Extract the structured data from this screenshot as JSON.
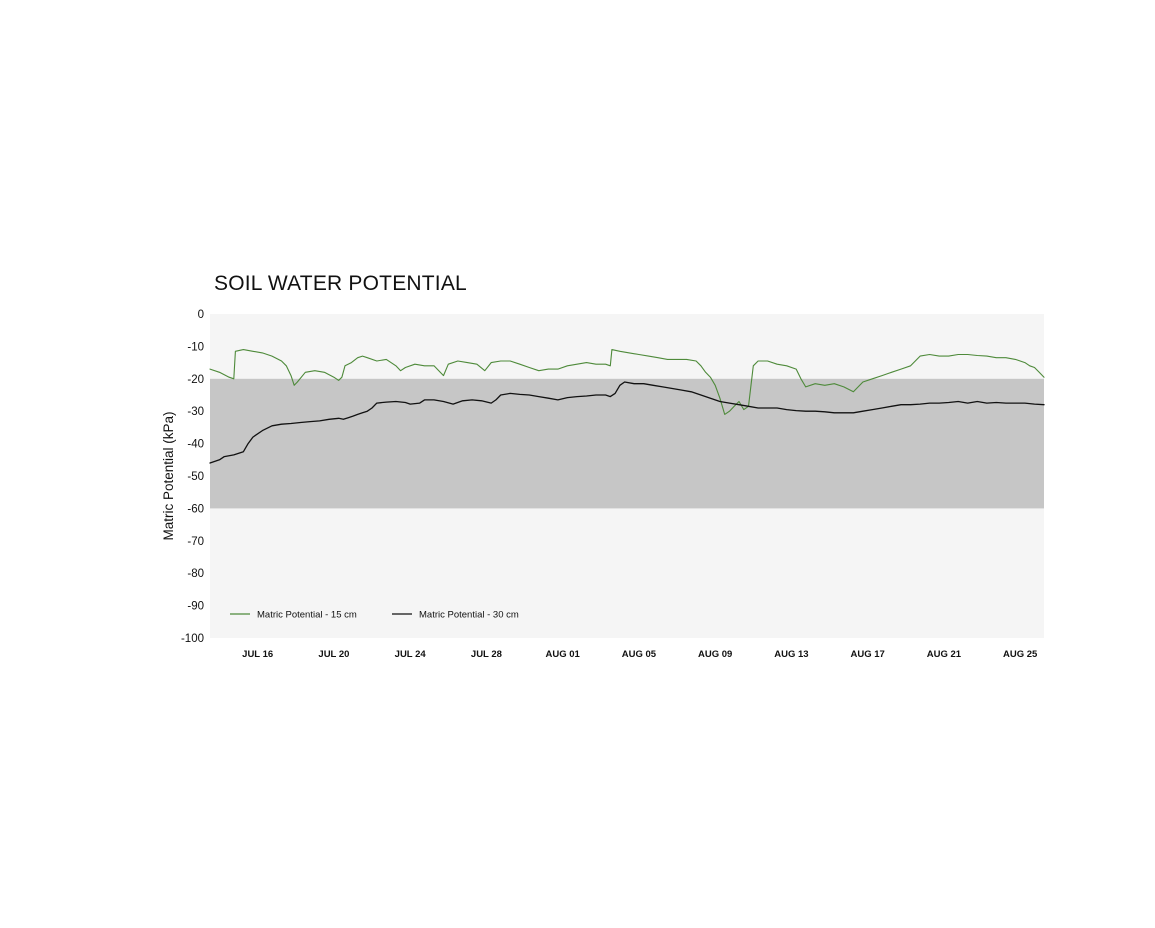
{
  "chart_data": {
    "type": "line",
    "title": "SOIL WATER POTENTIAL",
    "ylabel": "Matric Potential (kPa)",
    "xlabel": "",
    "ylim": [
      -100,
      0
    ],
    "xlim": [
      "2023-07-13",
      "2023-08-26"
    ],
    "yticks": [
      0,
      -10,
      -20,
      -30,
      -40,
      -50,
      -60,
      -70,
      -80,
      -90,
      -100
    ],
    "xticks": [
      {
        "label": "JUL 16",
        "date": "07-16"
      },
      {
        "label": "JUL 20",
        "date": "07-20"
      },
      {
        "label": "JUL 24",
        "date": "07-24"
      },
      {
        "label": "JUL 28",
        "date": "07-28"
      },
      {
        "label": "AUG 01",
        "date": "08-01"
      },
      {
        "label": "AUG 05",
        "date": "08-05"
      },
      {
        "label": "AUG 09",
        "date": "08-09"
      },
      {
        "label": "AUG 13",
        "date": "08-13"
      },
      {
        "label": "AUG 17",
        "date": "08-17"
      },
      {
        "label": "AUG 21",
        "date": "08-21"
      },
      {
        "label": "AUG 25",
        "date": "08-25"
      }
    ],
    "bands": [
      {
        "from": -20,
        "to": -60,
        "color": "#c6c6c6"
      }
    ],
    "plot_background": "#f5f5f5",
    "grid": false,
    "legend_position": "bottom-left",
    "series": [
      {
        "name": "Matric Potential - 15 cm",
        "color": "#4e8a3a",
        "points": [
          [
            "07-13 12:00",
            -17.0
          ],
          [
            "07-14 00:00",
            -18.0
          ],
          [
            "07-14 12:00",
            -19.5
          ],
          [
            "07-14 18:00",
            -20.0
          ],
          [
            "07-14 20:00",
            -11.5
          ],
          [
            "07-15 06:00",
            -11.0
          ],
          [
            "07-15 18:00",
            -11.5
          ],
          [
            "07-16 06:00",
            -12.0
          ],
          [
            "07-16 18:00",
            -13.0
          ],
          [
            "07-17 06:00",
            -14.5
          ],
          [
            "07-17 12:00",
            -16.0
          ],
          [
            "07-17 18:00",
            -19.0
          ],
          [
            "07-17 22:00",
            -22.0
          ],
          [
            "07-18 02:00",
            -21.0
          ],
          [
            "07-18 12:00",
            -18.0
          ],
          [
            "07-19 00:00",
            -17.5
          ],
          [
            "07-19 12:00",
            -18.0
          ],
          [
            "07-20 00:00",
            -19.5
          ],
          [
            "07-20 06:00",
            -20.5
          ],
          [
            "07-20 10:00",
            -19.5
          ],
          [
            "07-20 14:00",
            -16.0
          ],
          [
            "07-20 22:00",
            -15.0
          ],
          [
            "07-21 06:00",
            -13.5
          ],
          [
            "07-21 12:00",
            -13.0
          ],
          [
            "07-21 18:00",
            -13.5
          ],
          [
            "07-22 06:00",
            -14.5
          ],
          [
            "07-22 18:00",
            -14.0
          ],
          [
            "07-23 06:00",
            -16.0
          ],
          [
            "07-23 12:00",
            -17.5
          ],
          [
            "07-23 18:00",
            -16.5
          ],
          [
            "07-24 06:00",
            -15.5
          ],
          [
            "07-24 18:00",
            -16.0
          ],
          [
            "07-25 06:00",
            -16.0
          ],
          [
            "07-25 12:00",
            -17.5
          ],
          [
            "07-25 18:00",
            -19.0
          ],
          [
            "07-26 00:00",
            -15.5
          ],
          [
            "07-26 12:00",
            -14.5
          ],
          [
            "07-27 00:00",
            -15.0
          ],
          [
            "07-27 12:00",
            -15.5
          ],
          [
            "07-27 22:00",
            -17.5
          ],
          [
            "07-28 06:00",
            -15.0
          ],
          [
            "07-28 18:00",
            -14.5
          ],
          [
            "07-29 06:00",
            -14.5
          ],
          [
            "07-29 18:00",
            -15.5
          ],
          [
            "07-30 06:00",
            -16.5
          ],
          [
            "07-30 18:00",
            -17.5
          ],
          [
            "07-31 06:00",
            -17.0
          ],
          [
            "07-31 18:00",
            -17.0
          ],
          [
            "08-01 06:00",
            -16.0
          ],
          [
            "08-01 18:00",
            -15.5
          ],
          [
            "08-02 06:00",
            -15.0
          ],
          [
            "08-02 18:00",
            -15.5
          ],
          [
            "08-03 06:00",
            -15.5
          ],
          [
            "08-03 12:00",
            -16.0
          ],
          [
            "08-03 14:00",
            -11.0
          ],
          [
            "08-04 00:00",
            -11.5
          ],
          [
            "08-04 12:00",
            -12.0
          ],
          [
            "08-05 00:00",
            -12.5
          ],
          [
            "08-05 12:00",
            -13.0
          ],
          [
            "08-06 00:00",
            -13.5
          ],
          [
            "08-06 12:00",
            -14.0
          ],
          [
            "08-07 00:00",
            -14.0
          ],
          [
            "08-07 12:00",
            -14.0
          ],
          [
            "08-08 00:00",
            -14.5
          ],
          [
            "08-08 06:00",
            -16.0
          ],
          [
            "08-08 12:00",
            -18.0
          ],
          [
            "08-08 18:00",
            -19.5
          ],
          [
            "08-09 00:00",
            -22.0
          ],
          [
            "08-09 06:00",
            -26.0
          ],
          [
            "08-09 12:00",
            -31.0
          ],
          [
            "08-09 18:00",
            -30.0
          ],
          [
            "08-10 00:00",
            -28.5
          ],
          [
            "08-10 06:00",
            -27.0
          ],
          [
            "08-10 12:00",
            -29.5
          ],
          [
            "08-10 18:00",
            -28.5
          ],
          [
            "08-11 00:00",
            -16.0
          ],
          [
            "08-11 06:00",
            -14.5
          ],
          [
            "08-11 18:00",
            -14.5
          ],
          [
            "08-12 06:00",
            -15.5
          ],
          [
            "08-12 18:00",
            -16.0
          ],
          [
            "08-13 06:00",
            -17.0
          ],
          [
            "08-13 12:00",
            -20.0
          ],
          [
            "08-13 18:00",
            -22.5
          ],
          [
            "08-14 06:00",
            -21.5
          ],
          [
            "08-14 18:00",
            -22.0
          ],
          [
            "08-15 06:00",
            -21.5
          ],
          [
            "08-15 18:00",
            -22.5
          ],
          [
            "08-16 06:00",
            -24.0
          ],
          [
            "08-16 18:00",
            -21.0
          ],
          [
            "08-17 06:00",
            -20.0
          ],
          [
            "08-17 18:00",
            -19.0
          ],
          [
            "08-18 06:00",
            -18.0
          ],
          [
            "08-18 18:00",
            -17.0
          ],
          [
            "08-19 06:00",
            -16.0
          ],
          [
            "08-19 18:00",
            -13.0
          ],
          [
            "08-20 06:00",
            -12.5
          ],
          [
            "08-20 18:00",
            -13.0
          ],
          [
            "08-21 06:00",
            -13.0
          ],
          [
            "08-21 18:00",
            -12.5
          ],
          [
            "08-22 06:00",
            -12.5
          ],
          [
            "08-22 18:00",
            -12.8
          ],
          [
            "08-23 06:00",
            -13.0
          ],
          [
            "08-23 18:00",
            -13.5
          ],
          [
            "08-24 06:00",
            -13.5
          ],
          [
            "08-24 18:00",
            -14.0
          ],
          [
            "08-25 06:00",
            -15.0
          ],
          [
            "08-25 12:00",
            -16.0
          ],
          [
            "08-25 18:00",
            -16.5
          ],
          [
            "08-26 00:00",
            -18.0
          ],
          [
            "08-26 06:00",
            -19.5
          ]
        ]
      },
      {
        "name": "Matric Potential - 30 cm",
        "color": "#111111",
        "points": [
          [
            "07-13 12:00",
            -46.0
          ],
          [
            "07-14 00:00",
            -45.0
          ],
          [
            "07-14 06:00",
            -44.0
          ],
          [
            "07-14 18:00",
            -43.5
          ],
          [
            "07-15 06:00",
            -42.5
          ],
          [
            "07-15 12:00",
            -40.0
          ],
          [
            "07-15 18:00",
            -38.0
          ],
          [
            "07-16 06:00",
            -36.0
          ],
          [
            "07-16 18:00",
            -34.5
          ],
          [
            "07-17 06:00",
            -34.0
          ],
          [
            "07-17 18:00",
            -33.8
          ],
          [
            "07-18 06:00",
            -33.5
          ],
          [
            "07-18 18:00",
            -33.2
          ],
          [
            "07-19 06:00",
            -33.0
          ],
          [
            "07-19 18:00",
            -32.5
          ],
          [
            "07-20 06:00",
            -32.2
          ],
          [
            "07-20 12:00",
            -32.5
          ],
          [
            "07-20 18:00",
            -32.0
          ],
          [
            "07-21 00:00",
            -31.5
          ],
          [
            "07-21 06:00",
            -31.0
          ],
          [
            "07-21 12:00",
            -30.5
          ],
          [
            "07-21 18:00",
            -30.0
          ],
          [
            "07-22 00:00",
            -29.0
          ],
          [
            "07-22 06:00",
            -27.5
          ],
          [
            "07-22 18:00",
            -27.2
          ],
          [
            "07-23 06:00",
            -27.0
          ],
          [
            "07-23 18:00",
            -27.3
          ],
          [
            "07-24 00:00",
            -27.8
          ],
          [
            "07-24 12:00",
            -27.5
          ],
          [
            "07-24 18:00",
            -26.5
          ],
          [
            "07-25 06:00",
            -26.5
          ],
          [
            "07-25 18:00",
            -27.0
          ],
          [
            "07-26 06:00",
            -27.8
          ],
          [
            "07-26 18:00",
            -26.8
          ],
          [
            "07-27 06:00",
            -26.5
          ],
          [
            "07-27 18:00",
            -26.8
          ],
          [
            "07-28 06:00",
            -27.5
          ],
          [
            "07-28 12:00",
            -26.5
          ],
          [
            "07-28 18:00",
            -25.0
          ],
          [
            "07-29 06:00",
            -24.5
          ],
          [
            "07-29 18:00",
            -24.8
          ],
          [
            "07-30 06:00",
            -25.0
          ],
          [
            "07-30 18:00",
            -25.5
          ],
          [
            "07-31 06:00",
            -26.0
          ],
          [
            "07-31 18:00",
            -26.5
          ],
          [
            "08-01 06:00",
            -25.8
          ],
          [
            "08-01 18:00",
            -25.5
          ],
          [
            "08-02 06:00",
            -25.3
          ],
          [
            "08-02 18:00",
            -25.0
          ],
          [
            "08-03 06:00",
            -25.0
          ],
          [
            "08-03 12:00",
            -25.5
          ],
          [
            "08-03 18:00",
            -24.5
          ],
          [
            "08-04 00:00",
            -22.0
          ],
          [
            "08-04 06:00",
            -21.0
          ],
          [
            "08-04 18:00",
            -21.5
          ],
          [
            "08-05 06:00",
            -21.5
          ],
          [
            "08-05 18:00",
            -22.0
          ],
          [
            "08-06 06:00",
            -22.5
          ],
          [
            "08-06 18:00",
            -23.0
          ],
          [
            "08-07 06:00",
            -23.5
          ],
          [
            "08-07 18:00",
            -24.0
          ],
          [
            "08-08 06:00",
            -25.0
          ],
          [
            "08-08 18:00",
            -26.0
          ],
          [
            "08-09 06:00",
            -27.0
          ],
          [
            "08-09 18:00",
            -27.5
          ],
          [
            "08-10 06:00",
            -28.0
          ],
          [
            "08-10 18:00",
            -28.5
          ],
          [
            "08-11 06:00",
            -29.0
          ],
          [
            "08-11 18:00",
            -29.0
          ],
          [
            "08-12 06:00",
            -29.0
          ],
          [
            "08-12 18:00",
            -29.5
          ],
          [
            "08-13 06:00",
            -29.8
          ],
          [
            "08-13 18:00",
            -30.0
          ],
          [
            "08-14 06:00",
            -30.0
          ],
          [
            "08-14 18:00",
            -30.2
          ],
          [
            "08-15 06:00",
            -30.5
          ],
          [
            "08-15 18:00",
            -30.5
          ],
          [
            "08-16 06:00",
            -30.5
          ],
          [
            "08-16 18:00",
            -30.0
          ],
          [
            "08-17 06:00",
            -29.5
          ],
          [
            "08-17 18:00",
            -29.0
          ],
          [
            "08-18 06:00",
            -28.5
          ],
          [
            "08-18 18:00",
            -28.0
          ],
          [
            "08-19 06:00",
            -28.0
          ],
          [
            "08-19 18:00",
            -27.8
          ],
          [
            "08-20 06:00",
            -27.5
          ],
          [
            "08-20 18:00",
            -27.5
          ],
          [
            "08-21 06:00",
            -27.3
          ],
          [
            "08-21 18:00",
            -27.0
          ],
          [
            "08-22 06:00",
            -27.5
          ],
          [
            "08-22 18:00",
            -27.0
          ],
          [
            "08-23 06:00",
            -27.5
          ],
          [
            "08-23 18:00",
            -27.3
          ],
          [
            "08-24 06:00",
            -27.5
          ],
          [
            "08-24 18:00",
            -27.5
          ],
          [
            "08-25 06:00",
            -27.5
          ],
          [
            "08-25 18:00",
            -27.8
          ],
          [
            "08-26 06:00",
            -28.0
          ]
        ]
      }
    ]
  }
}
